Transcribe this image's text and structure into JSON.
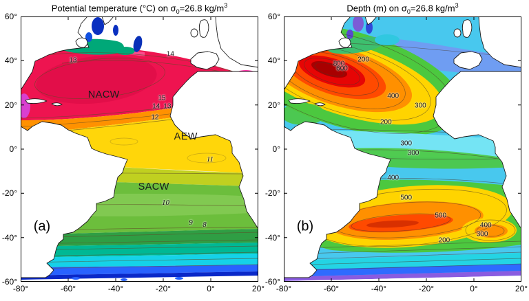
{
  "chart_data": [
    {
      "type": "heatmap",
      "subtype": "filled_contour_map",
      "panel_label": "(a)",
      "title": "Potential temperature (°C) on σ0=26.8 kg/m3",
      "title_parts": {
        "t1": "Potential temperature (°C) on σ",
        "sub": "0",
        "t2": "=26.8 kg/m",
        "sup": "3"
      },
      "xlim": [
        -80,
        20
      ],
      "ylim": [
        -60,
        60
      ],
      "x_ticks": [
        -80,
        -60,
        -40,
        -20,
        0,
        20
      ],
      "x_tick_labels": [
        "-80°",
        "-60°",
        "-40°",
        "-20°",
        "0°",
        "20°"
      ],
      "y_ticks": [
        60,
        40,
        20,
        0,
        -20,
        -40,
        -60
      ],
      "y_tick_labels": [
        "60°",
        "40°",
        "20°",
        "0°",
        "-20°",
        "-40°",
        "-60°"
      ],
      "units": "°C",
      "contour_levels": [
        8,
        9,
        10,
        11,
        12,
        13,
        14,
        15
      ],
      "contour_annotations": [
        {
          "value": "13",
          "lon": -58,
          "lat": 40
        },
        {
          "value": "14",
          "lon": -17,
          "lat": 43
        },
        {
          "value": "15",
          "lon": -20.6,
          "lat": 23
        },
        {
          "value": "14",
          "lon": -23,
          "lat": 19.3
        },
        {
          "value": "13",
          "lon": -18.3,
          "lat": 19.3
        },
        {
          "value": "12",
          "lon": -23.5,
          "lat": 14.3
        },
        {
          "value": "11",
          "lon": -0.3,
          "lat": -4.6,
          "italic": true
        },
        {
          "value": "10",
          "lon": -19,
          "lat": -24.3,
          "italic": true
        },
        {
          "value": "9",
          "lon": -8.4,
          "lat": -33.3,
          "italic": true
        },
        {
          "value": "8",
          "lon": -2.6,
          "lat": -34.2,
          "italic": true
        }
      ],
      "water_mass_labels": [
        {
          "text": "NACW",
          "lon": -45,
          "lat": 24.5
        },
        {
          "text": "AEW",
          "lon": -10.5,
          "lat": 5.5
        },
        {
          "text": "SACW",
          "lon": -24,
          "lat": -17
        }
      ],
      "colormap_hint": [
        "#0a28c8",
        "#2962ff",
        "#15d2e8",
        "#00b894",
        "#2f9e44",
        "#6cbe3c",
        "#c0d020",
        "#ffd60a",
        "#ff9100",
        "#ee1450",
        "#d93fd0"
      ]
    },
    {
      "type": "heatmap",
      "subtype": "filled_contour_map",
      "panel_label": "(b)",
      "title": "Depth (m) on σ0=26.8 kg/m3",
      "title_parts": {
        "t1": "Depth (m) on σ",
        "sub": "0",
        "t2": "=26.8 kg/m",
        "sup": "3"
      },
      "xlim": [
        -80,
        20
      ],
      "ylim": [
        -60,
        60
      ],
      "x_ticks": [
        -80,
        -60,
        -40,
        -20,
        0,
        20
      ],
      "x_tick_labels": [
        "-80°",
        "-60°",
        "-40°",
        "-20°",
        "0°",
        "20°"
      ],
      "y_ticks": [
        60,
        40,
        20,
        0,
        -20,
        -40,
        -60
      ],
      "y_tick_labels": [
        "60°",
        "40°",
        "20°",
        "0°",
        "-20°",
        "-40°",
        "-60°"
      ],
      "units": "m",
      "contour_levels": [
        200,
        300,
        400,
        500,
        600,
        800
      ],
      "contour_annotations": [
        {
          "value": "800",
          "lon": -56.8,
          "lat": 38.6
        },
        {
          "value": "600",
          "lon": -55.5,
          "lat": 36.3
        },
        {
          "value": "200",
          "lon": -46.5,
          "lat": 40.5
        },
        {
          "value": "400",
          "lon": -34,
          "lat": 24
        },
        {
          "value": "300",
          "lon": -22.5,
          "lat": 19.5
        },
        {
          "value": "200",
          "lon": -37,
          "lat": 12
        },
        {
          "value": "300",
          "lon": -28.5,
          "lat": 2.5
        },
        {
          "value": "300",
          "lon": -25.5,
          "lat": -2
        },
        {
          "value": "400",
          "lon": -34,
          "lat": -13
        },
        {
          "value": "500",
          "lon": -28.5,
          "lat": -22
        },
        {
          "value": "500",
          "lon": -14,
          "lat": -30
        },
        {
          "value": "400",
          "lon": 5,
          "lat": -34.5
        },
        {
          "value": "300",
          "lon": 3.5,
          "lat": -38.5
        },
        {
          "value": "200",
          "lon": -12.5,
          "lat": -41.5
        }
      ],
      "water_mass_labels": [],
      "colormap_hint": [
        "#8a5ce0",
        "#2e6bff",
        "#24d4e4",
        "#48c8ee",
        "#4cc83f",
        "#ffd400",
        "#ff9000",
        "#ff4a00",
        "#e60505",
        "#a80000"
      ]
    }
  ]
}
